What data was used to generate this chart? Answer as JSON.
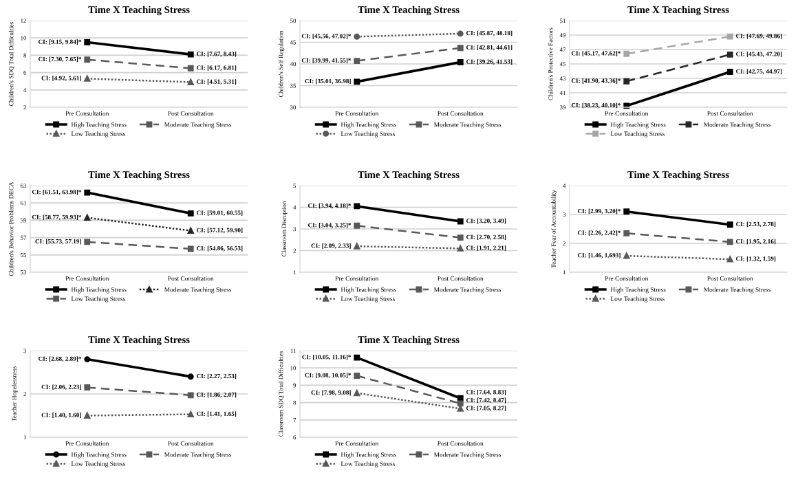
{
  "chart_data": [
    {
      "type": "line",
      "title": "Time X Teaching Stress",
      "ylabel": "Children's SDQ Total Difficulties",
      "categories": [
        "Pre Consultation",
        "Post Consultation"
      ],
      "ylim": [
        2,
        12
      ],
      "yticks": [
        2,
        4,
        6,
        8,
        10,
        12
      ],
      "grid": "y",
      "legend": "bottom",
      "series": [
        {
          "name": "High Teaching Stress",
          "color": "#000000",
          "values": [
            9.5,
            8.1
          ],
          "line_style": "solid",
          "marker": "square"
        },
        {
          "name": "Moderate Teaching Stress",
          "color": "#595959",
          "values": [
            7.5,
            6.5
          ],
          "line_style": "dashed",
          "marker": "square"
        },
        {
          "name": "Low Teaching Stress",
          "color": "#595959",
          "values": [
            5.3,
            4.9
          ],
          "line_style": "dotted",
          "marker": "triangle"
        }
      ],
      "annotations": [
        {
          "text": "CI: [9.15, 9.84]*",
          "x": "Pre Consultation",
          "y": 9.5
        },
        {
          "text": "CI: [7.67, 8.43]",
          "x": "Post Consultation",
          "y": 8.1
        },
        {
          "text": "CI: [7.30, 7.65]*",
          "x": "Pre Consultation",
          "y": 7.5
        },
        {
          "text": "CI: [6.17, 6.81]",
          "x": "Post Consultation",
          "y": 6.5
        },
        {
          "text": "CI: [4.92, 5.61]",
          "x": "Pre Consultation",
          "y": 5.3
        },
        {
          "text": "CI: [4.51, 5.31]",
          "x": "Post Consultation",
          "y": 4.9
        }
      ]
    },
    {
      "type": "line",
      "title": "Time X Teaching Stress",
      "ylabel": "Children's Self Regulation",
      "categories": [
        "Pre Consultation",
        "Post Consultation"
      ],
      "ylim": [
        30,
        50
      ],
      "yticks": [
        30,
        35,
        40,
        45,
        50
      ],
      "grid": "y",
      "legend": "bottom",
      "series": [
        {
          "name": "High Teaching Stress",
          "color": "#000000",
          "values": [
            35.9,
            40.4
          ],
          "line_style": "solid",
          "marker": "square"
        },
        {
          "name": "Moderate Teaching Stress",
          "color": "#595959",
          "values": [
            40.7,
            43.7
          ],
          "line_style": "dashed",
          "marker": "square"
        },
        {
          "name": "Low Teaching Stress",
          "color": "#595959",
          "values": [
            46.3,
            47.0
          ],
          "line_style": "dotted",
          "marker": "circle"
        }
      ],
      "annotations": [
        {
          "text": "CI: [35.01, 36.98]",
          "x": "Pre Consultation",
          "y": 35.9
        },
        {
          "text": "CI: [39.26, 41.53]",
          "x": "Post Consultation",
          "y": 40.4
        },
        {
          "text": "CI: [39.99, 41.55]*",
          "x": "Pre Consultation",
          "y": 40.7
        },
        {
          "text": "CI: [42.81, 44.61]",
          "x": "Post Consultation",
          "y": 43.7
        },
        {
          "text": "CI: [45.56, 47.02]*",
          "x": "Pre Consultation",
          "y": 46.3
        },
        {
          "text": "CI: [45.87, 48.18]",
          "x": "Post Consultation",
          "y": 47.0
        }
      ]
    },
    {
      "type": "line",
      "title": "Time X Teaching Stress",
      "ylabel": "Children's Protective Factors",
      "categories": [
        "Pre Consultation",
        "Post Consultation"
      ],
      "ylim": [
        39,
        51
      ],
      "yticks": [
        39,
        41,
        43,
        45,
        47,
        49,
        51
      ],
      "grid": "y",
      "legend": "bottom",
      "series": [
        {
          "name": "High Teaching Stress",
          "color": "#000000",
          "values": [
            39.2,
            43.9
          ],
          "line_style": "solid",
          "marker": "square"
        },
        {
          "name": "Moderate Teaching Stress",
          "color": "#262626",
          "values": [
            42.6,
            46.3
          ],
          "line_style": "dashed",
          "marker": "square"
        },
        {
          "name": "Low Teaching Stress",
          "color": "#a6a6a6",
          "values": [
            46.4,
            48.8
          ],
          "line_style": "dashed",
          "marker": "square"
        }
      ],
      "annotations": [
        {
          "text": "CI: [38.23, 40.10]*",
          "x": "Pre Consultation",
          "y": 39.2
        },
        {
          "text": "CI: [42.75, 44.97]",
          "x": "Post Consultation",
          "y": 43.9
        },
        {
          "text": "CI: [41.90, 43.36]*",
          "x": "Pre Consultation",
          "y": 42.6
        },
        {
          "text": "CI: [45.43, 47.20]",
          "x": "Post Consultation",
          "y": 46.3
        },
        {
          "text": "CI: [45.17, 47.62]*",
          "x": "Pre Consultation",
          "y": 46.4
        },
        {
          "text": "CI: [47.69, 49.86]",
          "x": "Post Consultation",
          "y": 48.8
        }
      ]
    },
    {
      "type": "line",
      "title": "Time X Teaching Stress",
      "ylabel": "Children's Behavior Problems DECA",
      "categories": [
        "Pre Consultation",
        "Post Consultation"
      ],
      "ylim": [
        53,
        63
      ],
      "yticks": [
        53,
        55,
        57,
        59,
        61,
        63
      ],
      "grid": "y",
      "legend": "bottom",
      "series": [
        {
          "name": "High Teaching Stress",
          "color": "#000000",
          "values": [
            62.2,
            59.8
          ],
          "line_style": "solid",
          "marker": "square"
        },
        {
          "name": "Moderate Teaching Stress",
          "color": "#262626",
          "values": [
            59.3,
            57.8
          ],
          "line_style": "dotted",
          "marker": "triangle"
        },
        {
          "name": "Low Teaching Stress",
          "color": "#595959",
          "values": [
            56.5,
            55.7
          ],
          "line_style": "dashed",
          "marker": "square"
        }
      ],
      "annotations": [
        {
          "text": "CI: [61.51, 63.98]*",
          "x": "Pre Consultation",
          "y": 62.2
        },
        {
          "text": "CI: [59.01, 60.55]",
          "x": "Post Consultation",
          "y": 59.8
        },
        {
          "text": "CI: [58.77, 59.93]*",
          "x": "Pre Consultation",
          "y": 59.3
        },
        {
          "text": "CI: [57.12, 59.90]",
          "x": "Post Consultation",
          "y": 57.8
        },
        {
          "text": "CI: [55.73, 57.19]",
          "x": "Pre Consultation",
          "y": 56.5
        },
        {
          "text": "CI: [54.86, 56.53]",
          "x": "Post Consultation",
          "y": 55.7
        }
      ]
    },
    {
      "type": "line",
      "title": "Time X Teaching Stress",
      "ylabel": "Classroom Disruption",
      "categories": [
        "Pre Consultation",
        "Post Consultation"
      ],
      "ylim": [
        1,
        5
      ],
      "yticks": [
        1,
        2,
        3,
        4,
        5
      ],
      "grid": "y",
      "legend": "bottom",
      "series": [
        {
          "name": "High Teaching Stress",
          "color": "#000000",
          "values": [
            4.05,
            3.35
          ],
          "line_style": "solid",
          "marker": "square"
        },
        {
          "name": "Moderate Teaching Stress",
          "color": "#595959",
          "values": [
            3.15,
            2.6
          ],
          "line_style": "dashed",
          "marker": "square"
        },
        {
          "name": "Low Teaching Stress",
          "color": "#595959",
          "values": [
            2.2,
            2.1
          ],
          "line_style": "dotted",
          "marker": "triangle"
        }
      ],
      "annotations": [
        {
          "text": "CI: [3.94, 4.18]*",
          "x": "Pre Consultation",
          "y": 4.05
        },
        {
          "text": "CI: [3.20, 3.49]",
          "x": "Post Consultation",
          "y": 3.35
        },
        {
          "text": "CI: [3.04, 3.25]*",
          "x": "Pre Consultation",
          "y": 3.15
        },
        {
          "text": "CI: [2.70, 2.58]",
          "x": "Post Consultation",
          "y": 2.6
        },
        {
          "text": "CI: [2.09, 2.33]",
          "x": "Pre Consultation",
          "y": 2.2
        },
        {
          "text": "CI: [1.91, 2.21]",
          "x": "Post Consultation",
          "y": 2.1
        }
      ]
    },
    {
      "type": "line",
      "title": "Time X Teaching Stress",
      "ylabel": "Teacher Fear of Accountability",
      "categories": [
        "Pre Consultation",
        "Post Consultation"
      ],
      "ylim": [
        1,
        4
      ],
      "yticks": [
        1,
        2,
        3,
        4
      ],
      "grid": "y",
      "legend": "bottom",
      "series": [
        {
          "name": "High Teaching Stress",
          "color": "#000000",
          "values": [
            3.1,
            2.65
          ],
          "line_style": "solid",
          "marker": "square"
        },
        {
          "name": "Moderate Teaching Stress",
          "color": "#595959",
          "values": [
            2.35,
            2.05
          ],
          "line_style": "dashed",
          "marker": "square"
        },
        {
          "name": "Low Teaching Stress",
          "color": "#595959",
          "values": [
            1.57,
            1.45
          ],
          "line_style": "dotted",
          "marker": "triangle"
        }
      ],
      "annotations": [
        {
          "text": "CI: [2.99, 3.20]*",
          "x": "Pre Consultation",
          "y": 3.1
        },
        {
          "text": "CI: [2.53, 2.78]",
          "x": "Post Consultation",
          "y": 2.65
        },
        {
          "text": "CI: [2.26, 2.42]*",
          "x": "Pre Consultation",
          "y": 2.35
        },
        {
          "text": "CI: [1.95, 2.16]",
          "x": "Post Consultation",
          "y": 2.05
        },
        {
          "text": "CI: [1.46, 1.693]",
          "x": "Pre Consultation",
          "y": 1.57
        },
        {
          "text": "CI: [1.32, 1.59]",
          "x": "Post Consultation",
          "y": 1.45
        }
      ]
    },
    {
      "type": "line",
      "title": "Time X Teaching Stress",
      "ylabel": "Teacher Hopelessness",
      "categories": [
        "Pre Consultation",
        "Post Consultation"
      ],
      "ylim": [
        1,
        3
      ],
      "yticks": [
        1,
        2,
        3
      ],
      "grid": "y",
      "legend": "bottom",
      "series": [
        {
          "name": "High Teaching Stress",
          "color": "#000000",
          "values": [
            2.8,
            2.4
          ],
          "line_style": "solid",
          "marker": "circle"
        },
        {
          "name": "Moderate Teaching Stress",
          "color": "#595959",
          "values": [
            2.15,
            1.97
          ],
          "line_style": "dashed",
          "marker": "square"
        },
        {
          "name": "Low Teaching Stress",
          "color": "#595959",
          "values": [
            1.5,
            1.53
          ],
          "line_style": "dotted",
          "marker": "triangle"
        }
      ],
      "annotations": [
        {
          "text": "CI: [2.68, 2.89]*",
          "x": "Pre Consultation",
          "y": 2.8
        },
        {
          "text": "CI: [2.27, 2.53]",
          "x": "Post Consultation",
          "y": 2.4
        },
        {
          "text": "CI: [2.06, 2.23]",
          "x": "Pre Consultation",
          "y": 2.15
        },
        {
          "text": "CI: [1.86, 2.07]",
          "x": "Post Consultation",
          "y": 1.97
        },
        {
          "text": "CI: [1.40, 1.60]",
          "x": "Pre Consultation",
          "y": 1.5
        },
        {
          "text": "CI: [1.41, 1.65]",
          "x": "Post Consultation",
          "y": 1.53
        }
      ]
    },
    {
      "type": "line",
      "title": "Time X Teaching Stress",
      "ylabel": "Classroom SDQ Total Difficulties",
      "categories": [
        "Pre Consultation",
        "Post Consultation"
      ],
      "ylim": [
        6,
        11
      ],
      "yticks": [
        6,
        7,
        8,
        9,
        10,
        11
      ],
      "grid": "y",
      "legend": "bottom",
      "series": [
        {
          "name": "High Teaching Stress",
          "color": "#000000",
          "values": [
            10.6,
            8.25
          ],
          "line_style": "solid",
          "marker": "square"
        },
        {
          "name": "Moderate Teaching Stress",
          "color": "#595959",
          "values": [
            9.55,
            7.95
          ],
          "line_style": "dashed",
          "marker": "square"
        },
        {
          "name": "Low Teaching Stress",
          "color": "#595959",
          "values": [
            8.55,
            7.65
          ],
          "line_style": "dotted",
          "marker": "triangle"
        }
      ],
      "annotations": [
        {
          "text": "CI: [10.05, 11.16]*",
          "x": "Pre Consultation",
          "y": 10.6
        },
        {
          "text": "CI: [7.64, 8.83]",
          "x": "Post Consultation",
          "y": 8.25
        },
        {
          "text": "CI: [9.08, 10.05]*",
          "x": "Pre Consultation",
          "y": 9.55
        },
        {
          "text": "CI: [7.42, 8.47]",
          "x": "Post Consultation",
          "y": 7.95
        },
        {
          "text": "CI: [7.98, 9.08]",
          "x": "Pre Consultation",
          "y": 8.55
        },
        {
          "text": "CI: [7.05, 8.27]",
          "x": "Post Consultation",
          "y": 7.65
        }
      ]
    }
  ]
}
